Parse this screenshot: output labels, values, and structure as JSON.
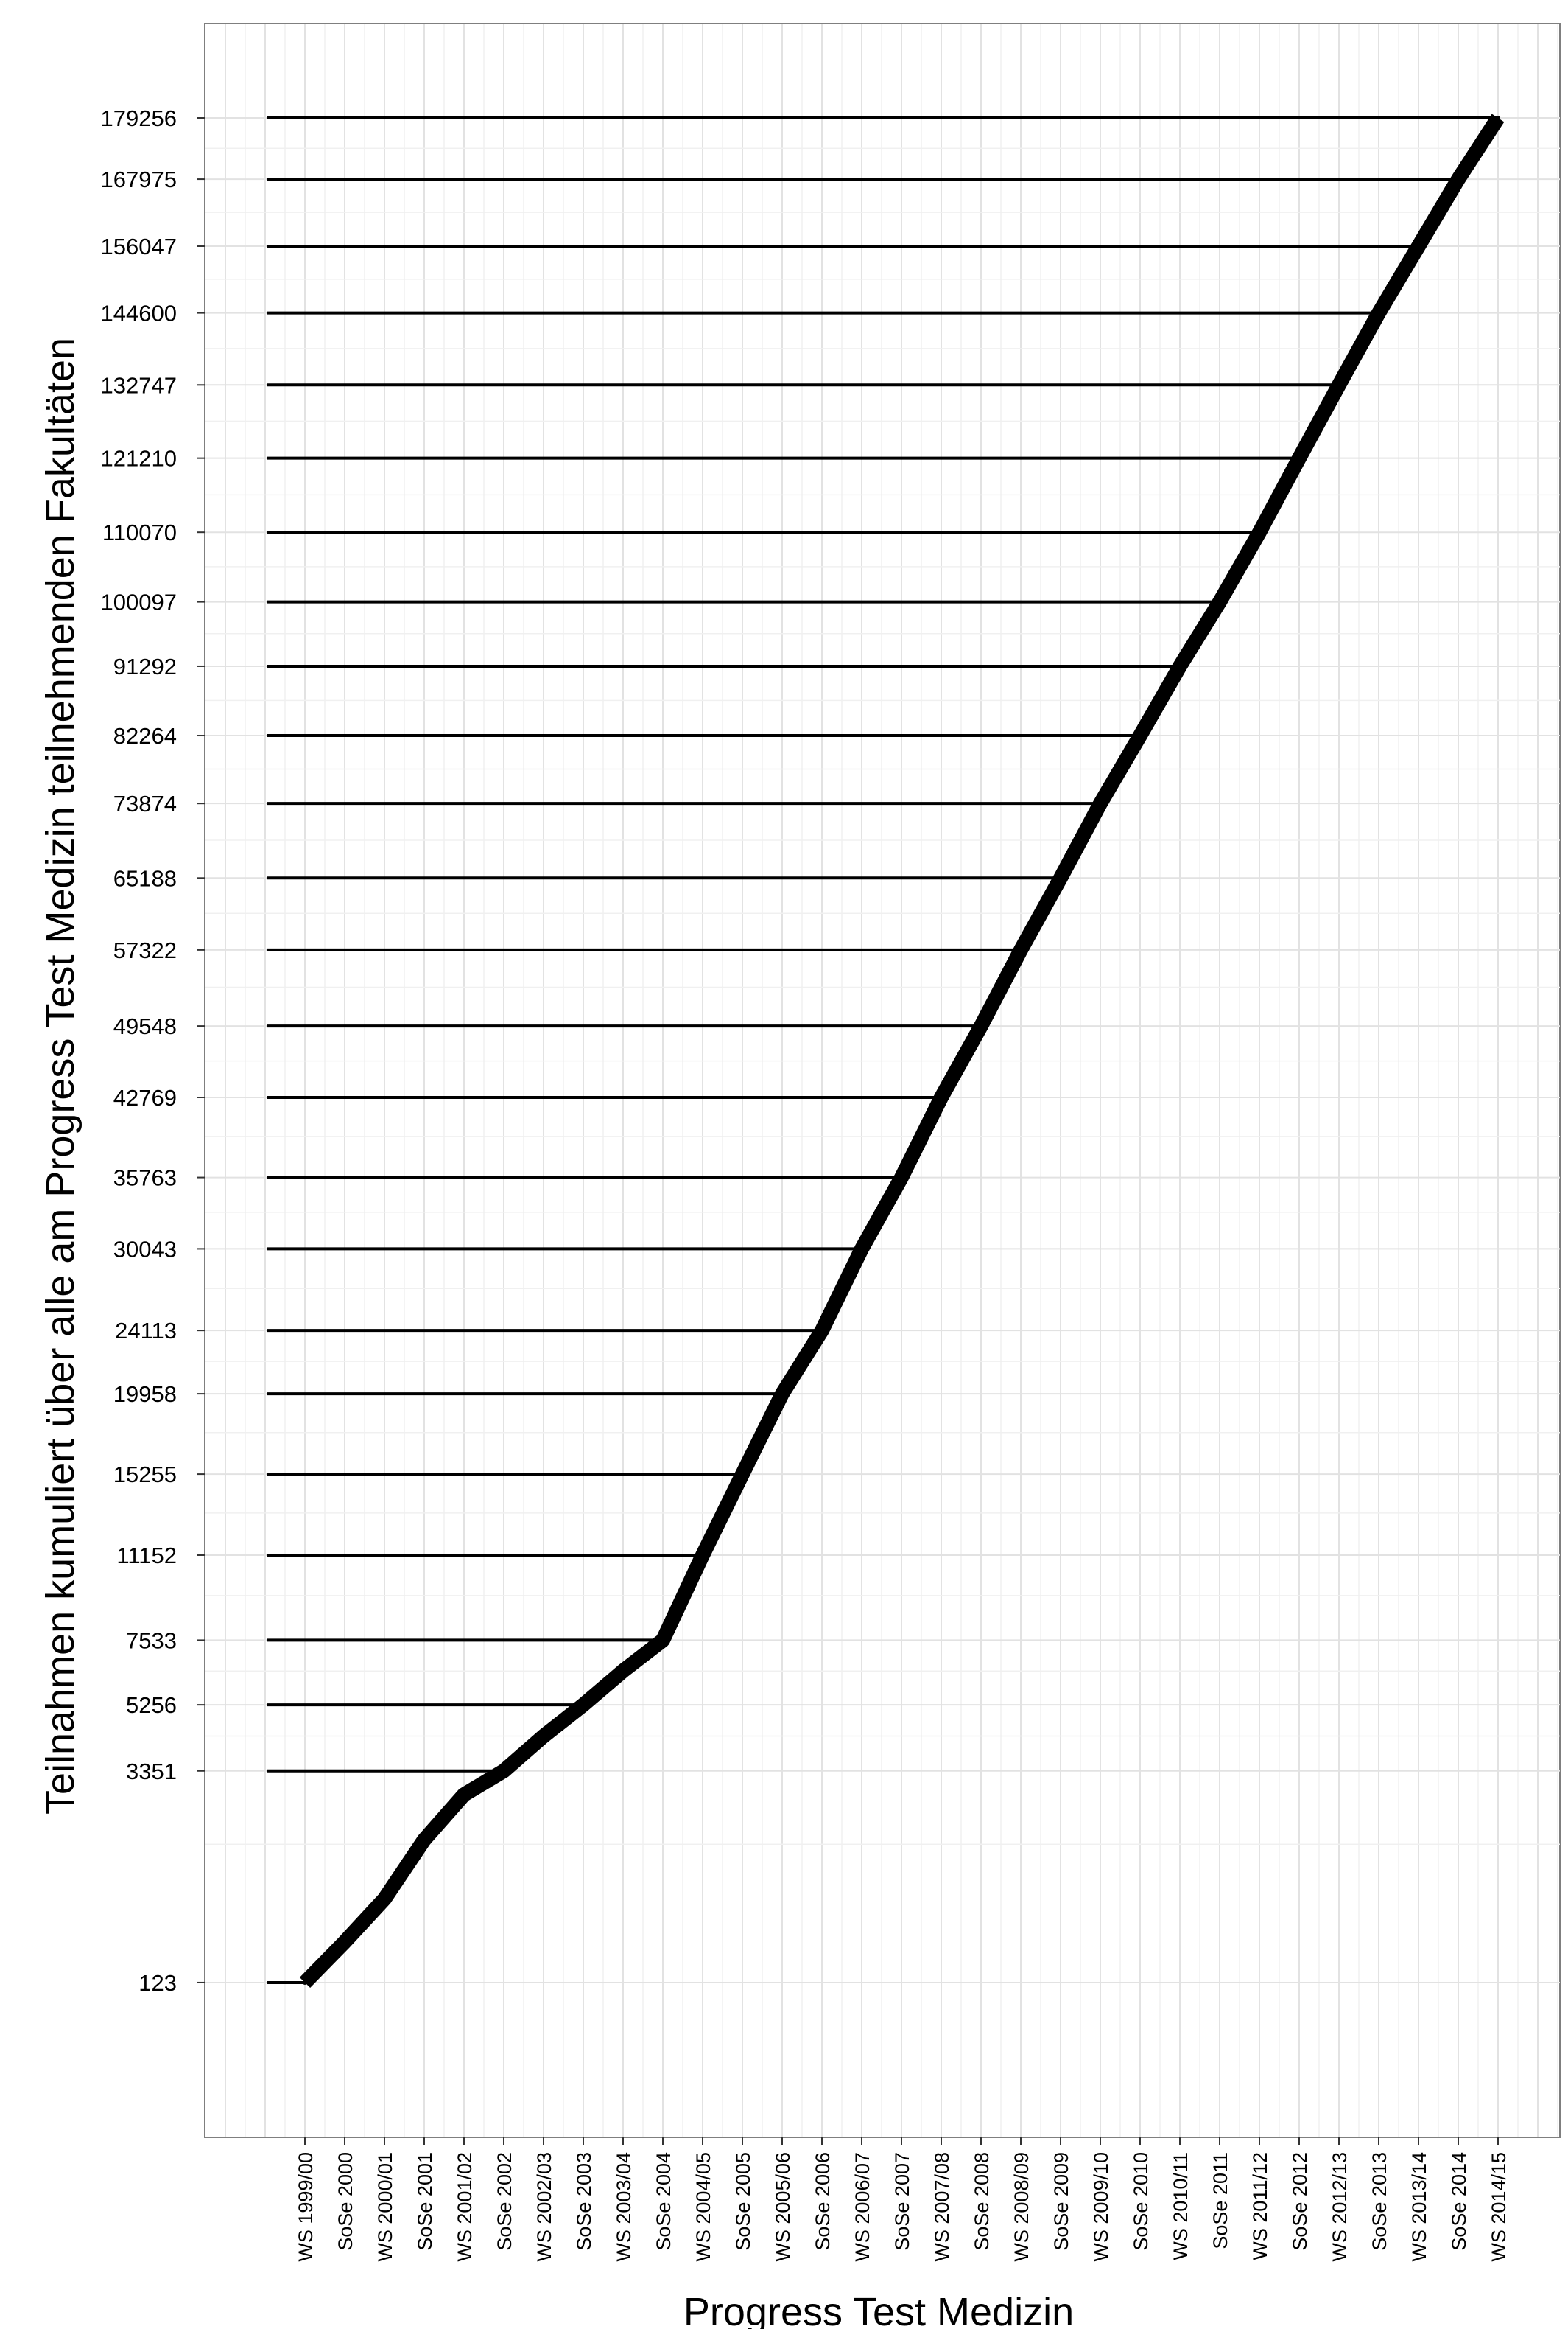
{
  "chart_data": {
    "type": "line",
    "title": "",
    "xlabel": "Progress Test Medizin",
    "ylabel": "Teilnahmen kumuliert über alle am Progress Test Medizin teilnehmenden Fakultäten",
    "categories": [
      "WS 1999/00",
      "SoSe 2000",
      "WS 2000/01",
      "SoSe 2001",
      "WS 2001/02",
      "SoSe 2002",
      "WS 2002/03",
      "SoSe 2003",
      "WS 2003/04",
      "SoSe 2004",
      "WS 2004/05",
      "SoSe 2005",
      "WS 2005/06",
      "SoSe 2006",
      "WS 2006/07",
      "SoSe 2007",
      "WS 2007/08",
      "SoSe 2008",
      "WS 2008/09",
      "SoSe 2009",
      "WS 2009/10",
      "SoSe 2010",
      "WS 2010/11",
      "SoSe 2011",
      "WS 2011/12",
      "SoSe 2012",
      "WS 2012/13",
      "SoSe 2013",
      "WS 2013/14",
      "SoSe 2014",
      "WS 2014/15"
    ],
    "series": [
      {
        "values": [
          123,
          403,
          875,
          1820,
          2770,
          3351,
          4300,
          5256,
          6400,
          7533,
          11152,
          15255,
          19958,
          24113,
          30043,
          35763,
          42769,
          49548,
          57322,
          65188,
          73874,
          82264,
          91292,
          100097,
          110070,
          121210,
          132747,
          144600,
          156047,
          167975,
          179256
        ]
      }
    ],
    "yticks": [
      123,
      3351,
      5256,
      7533,
      11152,
      15255,
      19958,
      24113,
      30043,
      35763,
      42769,
      49548,
      57322,
      65188,
      73874,
      82264,
      91292,
      100097,
      110070,
      121210,
      132747,
      144600,
      156047,
      167975,
      179256
    ],
    "yscale": "sqrt",
    "ylim": [
      0,
      192000
    ],
    "grid": true,
    "legend": "none"
  }
}
